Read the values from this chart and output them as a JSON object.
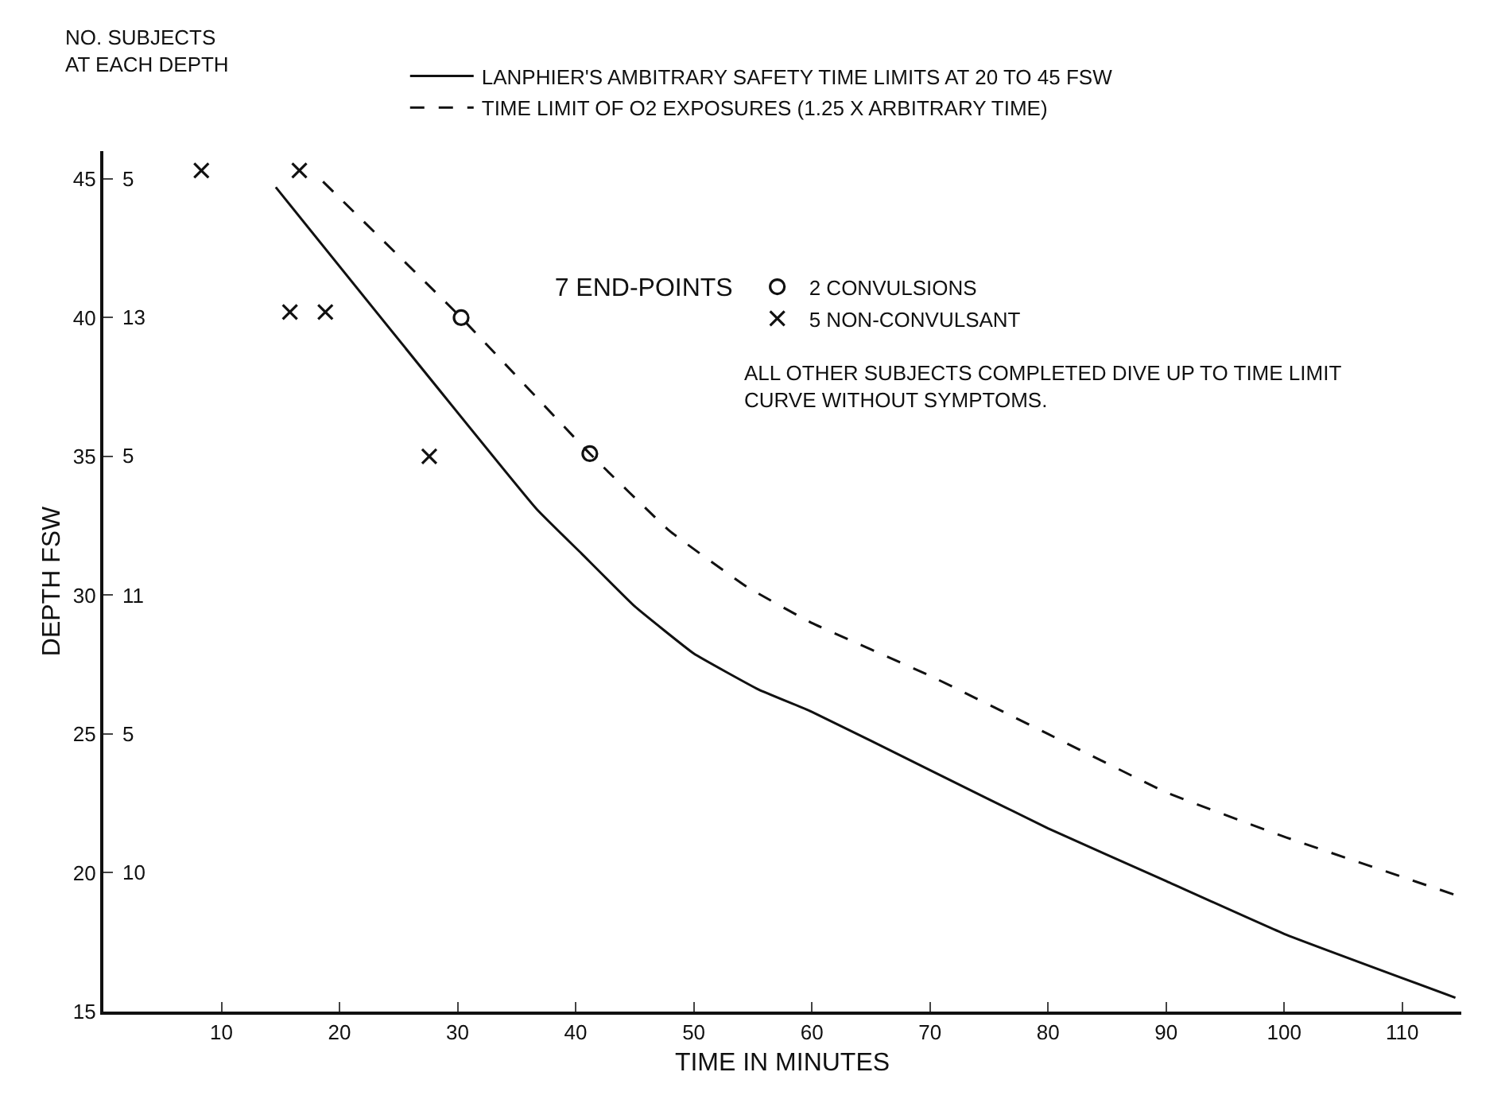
{
  "chart_data": {
    "type": "line",
    "xlabel": "TIME IN MINUTES",
    "ylabel": "DEPTH FSW",
    "xlim": [
      0,
      115
    ],
    "xticks": [
      10,
      20,
      30,
      40,
      50,
      60,
      70,
      80,
      90,
      100,
      110
    ],
    "ylim": [
      15,
      46
    ],
    "yticks": [
      15,
      20,
      25,
      30,
      35,
      40,
      45
    ],
    "legend": "top",
    "legend_title": "7 END-POINTS",
    "series": [
      {
        "name": "LANPHIER'S AMBITRARY SAFETY TIME LIMITS AT 20 TO 45 FSW",
        "color": "#111111",
        "line_style": "solid",
        "marker": "none",
        "x": [
          14.6,
          36.7,
          40.5,
          45,
          50,
          55.5,
          60,
          70,
          80,
          90,
          100,
          114.5
        ],
        "values": [
          44.7,
          33.1,
          31.5,
          29.6,
          27.9,
          26.6,
          25.8,
          23.7,
          21.6,
          19.7,
          17.8,
          15.5
        ]
      },
      {
        "name": "TIME LIMIT OF O2 EXPOSURES (1.25 X ARBITRARY TIME)",
        "color": "#111111",
        "line_style": "dashed",
        "marker": "none",
        "x": [
          18.6,
          30.3,
          41.2,
          48,
          54.5,
          60,
          70,
          80,
          90,
          100,
          114.5
        ],
        "values": [
          44.9,
          40.0,
          35.1,
          32.3,
          30.3,
          29.0,
          27.1,
          25.0,
          22.9,
          21.3,
          19.2
        ]
      },
      {
        "name": "2 CONVULSIONS",
        "type": "scatter",
        "color": "#111111",
        "marker": "circle",
        "x": [
          30.3,
          41.2
        ],
        "values": [
          40.0,
          35.1
        ]
      },
      {
        "name": "5 NON-CONVULSANT",
        "type": "scatter",
        "color": "#111111",
        "marker": "cross",
        "x": [
          8.3,
          16.6,
          15.8,
          18.8,
          27.6
        ],
        "values": [
          45.3,
          45.3,
          40.2,
          40.2,
          35.0
        ]
      }
    ],
    "annotations": [
      "NO. SUBJECTS\nAT EACH DEPTH",
      "ALL OTHER SUBJECTS COMPLETED DIVE UP TO TIME LIMIT\nCURVE WITHOUT SYMPTOMS.",
      "5",
      "13",
      "5",
      "11",
      "5",
      "10"
    ]
  }
}
